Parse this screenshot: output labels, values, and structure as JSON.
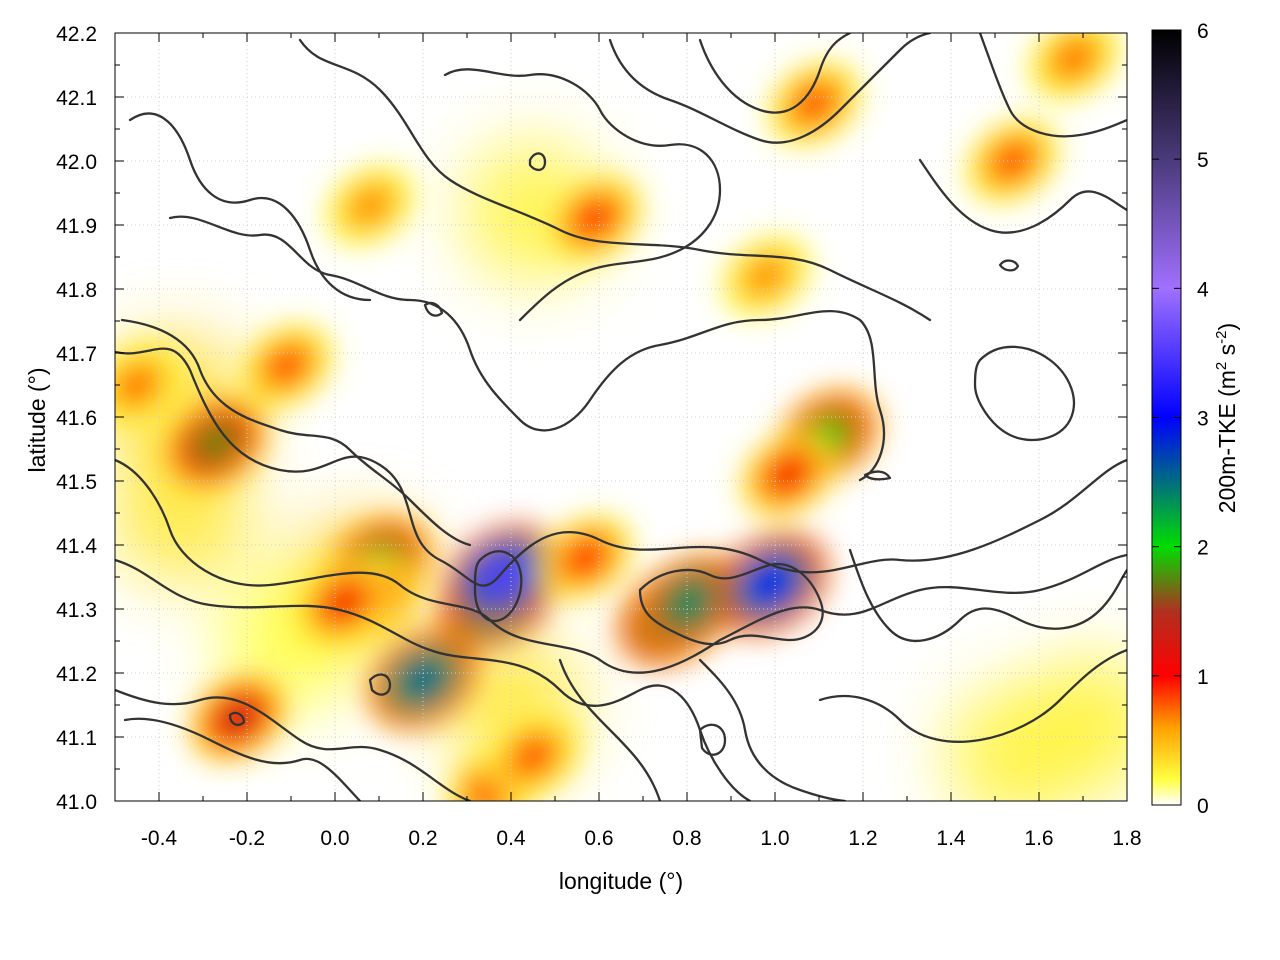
{
  "chart_data": {
    "type": "heatmap",
    "title": "",
    "xlabel": "longitude (°)",
    "ylabel": "latitude (°)",
    "xlim": [
      -0.5,
      1.8
    ],
    "ylim": [
      41.0,
      42.2
    ],
    "x_ticks": [
      -0.4,
      -0.2,
      0.0,
      0.2,
      0.4,
      0.6,
      0.8,
      1.0,
      1.2,
      1.4,
      1.6,
      1.8
    ],
    "x_tick_labels": [
      "-0.4",
      "-0.2",
      "0.0",
      "0.2",
      "0.4",
      "0.6",
      "0.8",
      "1.0",
      "1.2",
      "1.4",
      "1.6",
      "1.8"
    ],
    "y_ticks": [
      41.0,
      41.1,
      41.2,
      41.3,
      41.4,
      41.5,
      41.6,
      41.7,
      41.8,
      41.9,
      42.0,
      42.1,
      42.2
    ],
    "y_tick_labels": [
      "41.0",
      "41.1",
      "41.2",
      "41.3",
      "41.4",
      "41.5",
      "41.6",
      "41.7",
      "41.8",
      "41.9",
      "42.0",
      "42.1",
      "42.2"
    ],
    "grid": true,
    "colorbar": {
      "label": "200m-TKE (m² s⁻²)",
      "label_main": "200m-TKE (m",
      "label_sup1": "2",
      "label_mid": " s",
      "label_sup2": "-2",
      "label_end": ")",
      "range": [
        0,
        6
      ],
      "ticks": [
        0,
        1,
        2,
        3,
        4,
        5,
        6
      ],
      "tick_labels": [
        "0",
        "1",
        "2",
        "3",
        "4",
        "5",
        "6"
      ],
      "stops": [
        {
          "value": 0.0,
          "color": "#ffffff"
        },
        {
          "value": 0.2,
          "color": "#ffff40"
        },
        {
          "value": 0.6,
          "color": "#ffa000"
        },
        {
          "value": 1.0,
          "color": "#ff0000"
        },
        {
          "value": 1.5,
          "color": "#b03020"
        },
        {
          "value": 2.0,
          "color": "#00dd00"
        },
        {
          "value": 3.0,
          "color": "#0000ff"
        },
        {
          "value": 4.0,
          "color": "#a070ff"
        },
        {
          "value": 5.0,
          "color": "#4a3a7a"
        },
        {
          "value": 6.0,
          "color": "#000000"
        }
      ]
    },
    "hotspots": [
      {
        "lon": 0.37,
        "lat": 41.32,
        "tke": 4.2
      },
      {
        "lon": 0.38,
        "lat": 41.35,
        "tke": 3.6
      },
      {
        "lon": 0.1,
        "lat": 41.37,
        "tke": 2.1
      },
      {
        "lon": 0.08,
        "lat": 41.32,
        "tke": 1.2
      },
      {
        "lon": -0.27,
        "lat": 41.56,
        "tke": 1.8
      },
      {
        "lon": 0.2,
        "lat": 41.19,
        "tke": 2.6
      },
      {
        "lon": -0.22,
        "lat": 41.13,
        "tke": 1.4
      },
      {
        "lon": 0.77,
        "lat": 41.29,
        "tke": 2.8
      },
      {
        "lon": 0.81,
        "lat": 41.31,
        "tke": 2.4
      },
      {
        "lon": 0.99,
        "lat": 41.34,
        "tke": 3.0
      },
      {
        "lon": 1.12,
        "lat": 41.57,
        "tke": 2.0
      },
      {
        "lon": 1.03,
        "lat": 41.51,
        "tke": 1.1
      },
      {
        "lon": 0.02,
        "lat": 41.31,
        "tke": 1.1
      },
      {
        "lon": 0.36,
        "lat": 41.02,
        "tke": 1.0
      },
      {
        "lon": 0.45,
        "lat": 41.07,
        "tke": 0.9
      },
      {
        "lon": 0.57,
        "lat": 41.38,
        "tke": 1.0
      },
      {
        "lon": 0.59,
        "lat": 41.91,
        "tke": 1.0
      },
      {
        "lon": 1.09,
        "lat": 42.09,
        "tke": 0.9
      },
      {
        "lon": 1.54,
        "lat": 42.0,
        "tke": 0.9
      },
      {
        "lon": 1.68,
        "lat": 42.16,
        "tke": 0.8
      },
      {
        "lon": -0.45,
        "lat": 41.65,
        "tke": 0.8
      },
      {
        "lon": 0.08,
        "lat": 41.93,
        "tke": 0.7
      },
      {
        "lon": -0.11,
        "lat": 41.68,
        "tke": 0.9
      },
      {
        "lon": 0.98,
        "lat": 41.82,
        "tke": 0.7
      }
    ],
    "broad_fields": [
      {
        "lon": -0.36,
        "lat": 41.62,
        "tke": 0.35
      },
      {
        "lon": 0.05,
        "lat": 41.33,
        "tke": 0.4
      },
      {
        "lon": 1.55,
        "lat": 41.07,
        "tke": 0.25
      },
      {
        "lon": 1.72,
        "lat": 41.12,
        "tke": 0.25
      },
      {
        "lon": -0.1,
        "lat": 41.25,
        "tke": 0.2
      },
      {
        "lon": 0.4,
        "lat": 41.15,
        "tke": 0.3
      },
      {
        "lon": 0.45,
        "lat": 41.92,
        "tke": 0.25
      },
      {
        "lon": -0.35,
        "lat": 41.45,
        "tke": 0.3
      }
    ]
  }
}
